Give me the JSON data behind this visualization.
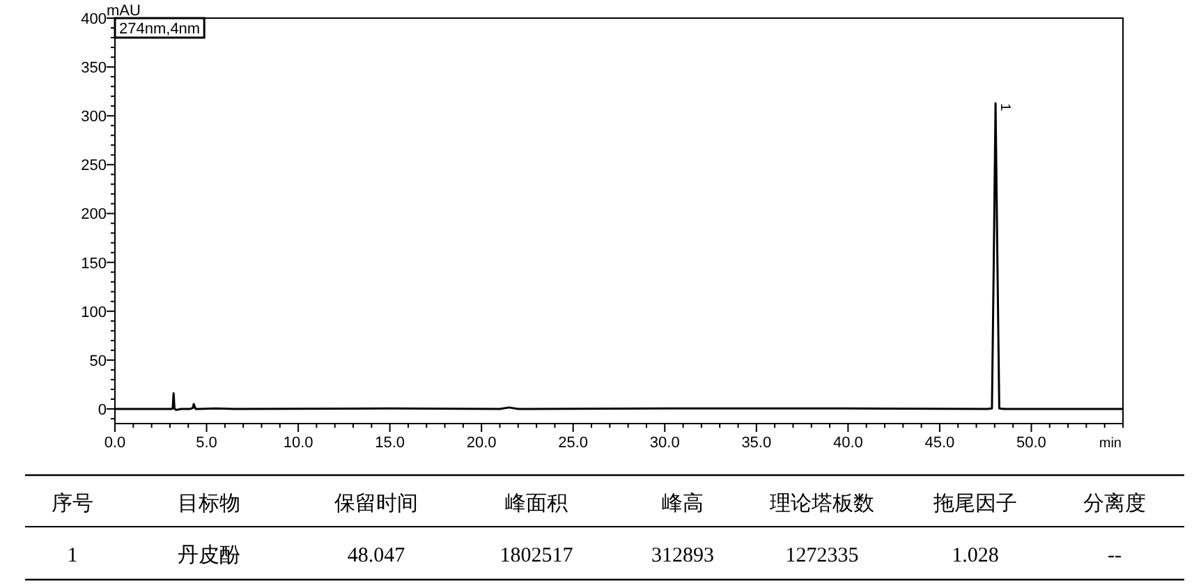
{
  "chart_data": [
    {
      "type": "line",
      "xlabel": "min",
      "ylabel": "mAU",
      "annotations": [
        "274nm,4nm",
        {
          "text": "1",
          "x": 48.047,
          "y": 312.9
        }
      ],
      "series": [
        {
          "color": "#000000",
          "x": [
            0,
            3.1,
            3.15,
            3.2,
            3.25,
            3.35,
            3.6,
            4.1,
            4.25,
            4.3,
            4.4,
            4.6,
            5.5,
            6.5,
            15,
            21,
            21.5,
            22,
            30,
            40,
            47.6,
            47.85,
            47.95,
            48.047,
            48.15,
            48.25,
            48.5,
            55
          ],
          "values": [
            0,
            0,
            0.5,
            16,
            0,
            -1,
            0,
            0,
            1,
            5,
            0,
            0,
            0.5,
            0,
            0.5,
            0,
            1.5,
            0,
            0.5,
            0.5,
            0,
            0.5,
            150,
            312.9,
            150,
            0.5,
            0,
            0
          ]
        }
      ],
      "xlim": [
        0,
        55
      ],
      "ylim": [
        -15,
        400
      ],
      "xticks": [
        {
          "value": 0,
          "label": "0.0"
        },
        {
          "value": 1,
          "label": null
        },
        {
          "value": 2,
          "label": null
        },
        {
          "value": 3,
          "label": null
        },
        {
          "value": 4,
          "label": null
        },
        {
          "value": 5,
          "label": "5.0"
        },
        {
          "value": 6,
          "label": null
        },
        {
          "value": 7,
          "label": null
        },
        {
          "value": 8,
          "label": null
        },
        {
          "value": 9,
          "label": null
        },
        {
          "value": 10,
          "label": "10.0"
        },
        {
          "value": 11,
          "label": null
        },
        {
          "value": 12,
          "label": null
        },
        {
          "value": 13,
          "label": null
        },
        {
          "value": 14,
          "label": null
        },
        {
          "value": 15,
          "label": "15.0"
        },
        {
          "value": 16,
          "label": null
        },
        {
          "value": 17,
          "label": null
        },
        {
          "value": 18,
          "label": null
        },
        {
          "value": 19,
          "label": null
        },
        {
          "value": 20,
          "label": "20.0"
        },
        {
          "value": 21,
          "label": null
        },
        {
          "value": 22,
          "label": null
        },
        {
          "value": 23,
          "label": null
        },
        {
          "value": 24,
          "label": null
        },
        {
          "value": 25,
          "label": "25.0"
        },
        {
          "value": 26,
          "label": null
        },
        {
          "value": 27,
          "label": null
        },
        {
          "value": 28,
          "label": null
        },
        {
          "value": 29,
          "label": null
        },
        {
          "value": 30,
          "label": "30.0"
        },
        {
          "value": 31,
          "label": null
        },
        {
          "value": 32,
          "label": null
        },
        {
          "value": 33,
          "label": null
        },
        {
          "value": 34,
          "label": null
        },
        {
          "value": 35,
          "label": "35.0"
        },
        {
          "value": 36,
          "label": null
        },
        {
          "value": 37,
          "label": null
        },
        {
          "value": 38,
          "label": null
        },
        {
          "value": 39,
          "label": null
        },
        {
          "value": 40,
          "label": "40.0"
        },
        {
          "value": 41,
          "label": null
        },
        {
          "value": 42,
          "label": null
        },
        {
          "value": 43,
          "label": null
        },
        {
          "value": 44,
          "label": null
        },
        {
          "value": 45,
          "label": "45.0"
        },
        {
          "value": 46,
          "label": null
        },
        {
          "value": 47,
          "label": null
        },
        {
          "value": 48,
          "label": null
        },
        {
          "value": 49,
          "label": null
        },
        {
          "value": 50,
          "label": "50.0"
        },
        {
          "value": 51,
          "label": null
        },
        {
          "value": 52,
          "label": null
        },
        {
          "value": 53,
          "label": null
        },
        {
          "value": 54,
          "label": null
        },
        {
          "value": 55,
          "label": null
        }
      ],
      "yticks": [
        {
          "value": -10,
          "label": null
        },
        0,
        {
          "value": 10,
          "label": null
        },
        {
          "value": 20,
          "label": null
        },
        {
          "value": 30,
          "label": null
        },
        {
          "value": 40,
          "label": null
        },
        50,
        {
          "value": 60,
          "label": null
        },
        {
          "value": 70,
          "label": null
        },
        {
          "value": 80,
          "label": null
        },
        {
          "value": 90,
          "label": null
        },
        100,
        {
          "value": 110,
          "label": null
        },
        {
          "value": 120,
          "label": null
        },
        {
          "value": 130,
          "label": null
        },
        {
          "value": 140,
          "label": null
        },
        150,
        {
          "value": 160,
          "label": null
        },
        {
          "value": 170,
          "label": null
        },
        {
          "value": 180,
          "label": null
        },
        {
          "value": 190,
          "label": null
        },
        200,
        {
          "value": 210,
          "label": null
        },
        {
          "value": 220,
          "label": null
        },
        {
          "value": 230,
          "label": null
        },
        {
          "value": 240,
          "label": null
        },
        250,
        {
          "value": 260,
          "label": null
        },
        {
          "value": 270,
          "label": null
        },
        {
          "value": 280,
          "label": null
        },
        {
          "value": 290,
          "label": null
        },
        300,
        {
          "value": 310,
          "label": null
        },
        {
          "value": 320,
          "label": null
        },
        {
          "value": 330,
          "label": null
        },
        {
          "value": 340,
          "label": null
        },
        350,
        {
          "value": 360,
          "label": null
        },
        {
          "value": 370,
          "label": null
        },
        {
          "value": 380,
          "label": null
        },
        {
          "value": 390,
          "label": null
        },
        400
      ]
    },
    {
      "type": "other",
      "annotations": [
        "序号",
        "目标物",
        "保留时间",
        "峰面积",
        "峰高",
        "理论塔板数",
        "拖尾因子",
        "分离度",
        "1",
        "丹皮酚",
        "48.047",
        "1802517",
        "312893",
        "1272335",
        "1.028",
        "--"
      ]
    }
  ]
}
